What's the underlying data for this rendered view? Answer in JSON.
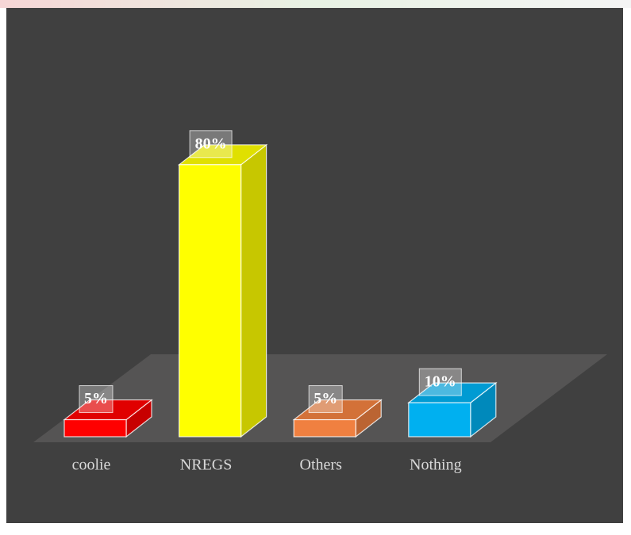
{
  "chart_data": {
    "type": "bar3d",
    "categories": [
      "coolie",
      "NREGS",
      "Others",
      "Nothing"
    ],
    "values": [
      5,
      80,
      5,
      10
    ],
    "value_labels": [
      "5%",
      "80%",
      "5%",
      "10%"
    ],
    "colors": [
      "#ff0000",
      "#ffff00",
      "#f08040",
      "#00b0f0"
    ]
  }
}
